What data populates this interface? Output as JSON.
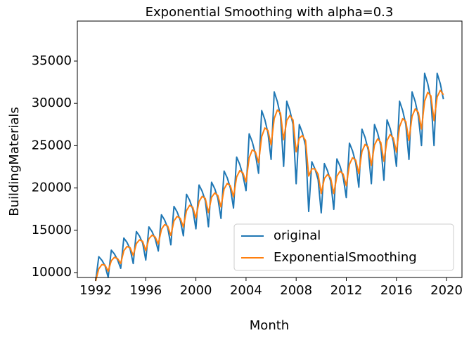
{
  "chart_data": {
    "type": "line",
    "title": "Exponential Smoothing with alpha=0.3",
    "xlabel": "Month",
    "ylabel": "BuildingMaterials",
    "x": [
      1992,
      1992.25,
      1992.5,
      1992.75,
      1993,
      1993.25,
      1993.5,
      1993.75,
      1994,
      1994.25,
      1994.5,
      1994.75,
      1995,
      1995.25,
      1995.5,
      1995.75,
      1996,
      1996.25,
      1996.5,
      1996.75,
      1997,
      1997.25,
      1997.5,
      1997.75,
      1998,
      1998.25,
      1998.5,
      1998.75,
      1999,
      1999.25,
      1999.5,
      1999.75,
      2000,
      2000.25,
      2000.5,
      2000.75,
      2001,
      2001.25,
      2001.5,
      2001.75,
      2002,
      2002.25,
      2002.5,
      2002.75,
      2003,
      2003.25,
      2003.5,
      2003.75,
      2004,
      2004.25,
      2004.5,
      2004.75,
      2005,
      2005.25,
      2005.5,
      2005.75,
      2006,
      2006.25,
      2006.5,
      2006.75,
      2007,
      2007.25,
      2007.5,
      2007.75,
      2008,
      2008.25,
      2008.5,
      2008.75,
      2009,
      2009.25,
      2009.5,
      2009.75,
      2010,
      2010.25,
      2010.5,
      2010.75,
      2011,
      2011.25,
      2011.5,
      2011.75,
      2012,
      2012.25,
      2012.5,
      2012.75,
      2013,
      2013.25,
      2013.5,
      2013.75,
      2014,
      2014.25,
      2014.5,
      2014.75,
      2015,
      2015.25,
      2015.5,
      2015.75,
      2016,
      2016.25,
      2016.5,
      2016.75,
      2017,
      2017.25,
      2017.5,
      2017.75,
      2018,
      2018.25,
      2018.5,
      2018.75,
      2019,
      2019.25,
      2019.5,
      2019.75
    ],
    "series": [
      {
        "name": "original",
        "color": "#1f77b4",
        "values": [
          9000,
          11880,
          11450,
          10800,
          9430,
          12650,
          12190,
          11500,
          10500,
          14080,
          13570,
          12800,
          11070,
          14850,
          14310,
          13500,
          11480,
          15400,
          14840,
          14000,
          12550,
          16830,
          16220,
          15300,
          13280,
          17820,
          17170,
          16200,
          14350,
          19250,
          18550,
          17500,
          15170,
          20350,
          19610,
          18500,
          15420,
          20680,
          19930,
          18800,
          16400,
          22000,
          21200,
          20000,
          17630,
          23650,
          22790,
          21500,
          19680,
          26400,
          25440,
          24000,
          21730,
          29150,
          28090,
          26500,
          23370,
          31350,
          30210,
          28500,
          22550,
          30250,
          29150,
          27500,
          20500,
          27500,
          26500,
          25000,
          17220,
          23100,
          22260,
          21000,
          17060,
          22880,
          22050,
          20800,
          17470,
          23430,
          22580,
          21300,
          18860,
          25300,
          24380,
          23000,
          20090,
          26950,
          25970,
          24500,
          20500,
          27500,
          26500,
          25000,
          20910,
          28050,
          27030,
          25500,
          22550,
          30250,
          29150,
          27500,
          23370,
          31350,
          30210,
          28500,
          25010,
          33550,
          32330,
          30500,
          25010,
          33550,
          32330,
          30500
        ]
      },
      {
        "name": "ExponentialSmoothing",
        "color": "#ff7f0e",
        "values": [
          9000,
          10440,
          10950,
          10880,
          10160,
          11410,
          11800,
          11650,
          11080,
          12580,
          13080,
          12940,
          12010,
          13430,
          13870,
          13690,
          12590,
          14000,
          14420,
          14210,
          13380,
          15110,
          15670,
          15490,
          14390,
          16110,
          16640,
          16420,
          15390,
          17320,
          17940,
          17720,
          16450,
          18400,
          19010,
          18760,
          17090,
          18890,
          19410,
          19110,
          17760,
          19880,
          20540,
          20270,
          18950,
          21300,
          22050,
          21780,
          20730,
          23570,
          24510,
          24260,
          23000,
          26080,
          27090,
          26800,
          25090,
          28220,
          29220,
          28860,
          25710,
          27980,
          28570,
          28040,
          24270,
          25890,
          26200,
          25600,
          21410,
          22260,
          22260,
          21630,
          19350,
          21120,
          21590,
          21200,
          19340,
          21390,
          21990,
          21650,
          20260,
          22780,
          23580,
          23290,
          21690,
          24320,
          25150,
          24830,
          22670,
          25090,
          25800,
          25400,
          23160,
          25610,
          26320,
          25910,
          24230,
          27240,
          28200,
          27850,
          25610,
          28480,
          29350,
          28930,
          26970,
          30260,
          31300,
          30900,
          27960,
          30760,
          31550,
          31030
        ]
      }
    ],
    "xlim": [
      1990.54,
      2021.23
    ],
    "xticks": [
      1992,
      1996,
      2000,
      2004,
      2008,
      2012,
      2016,
      2020
    ],
    "ylim": [
      9420,
      39730
    ],
    "yticks": [
      10000,
      15000,
      20000,
      25000,
      30000,
      35000
    ],
    "legend": "lower right"
  }
}
